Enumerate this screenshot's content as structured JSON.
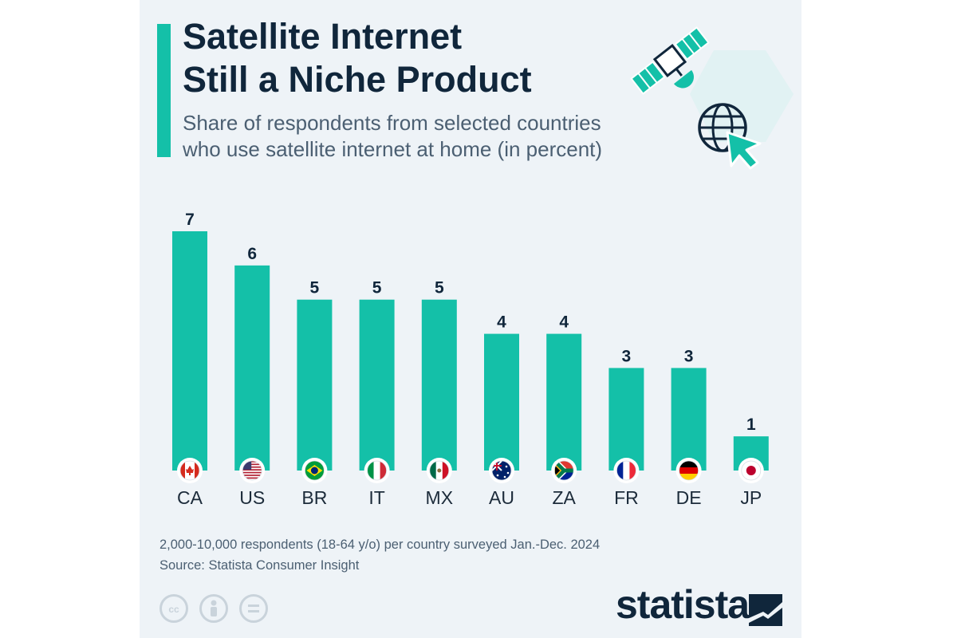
{
  "title_lines": [
    "Satellite Internet",
    "Still a Niche Product"
  ],
  "subtitle_lines": [
    "Share of respondents from selected countries",
    "who use satellite internet at home (in percent)"
  ],
  "footnote": "2,000-10,000 respondents (18-64 y/o) per country surveyed Jan.-Dec. 2024",
  "source": "Source: Statista Consumer Insight",
  "logo_text": "statista",
  "license_icons": [
    "creative-commons-icon",
    "attribution-person-icon",
    "no-derivatives-icon"
  ],
  "illustration_icons": [
    "satellite-icon",
    "globe-icon",
    "cursor-arrow-icon"
  ],
  "colors": {
    "bar": "#14c0a8",
    "title": "#10263b",
    "background": "#eef3f7"
  },
  "chart_data": {
    "type": "bar",
    "categories": [
      "CA",
      "US",
      "BR",
      "IT",
      "MX",
      "AU",
      "ZA",
      "FR",
      "DE",
      "JP"
    ],
    "values": [
      7,
      6,
      5,
      5,
      5,
      4,
      4,
      3,
      3,
      1
    ],
    "ylim": [
      0,
      7
    ],
    "grid": false,
    "legend": "none",
    "category_icons": [
      "canada-flag-icon",
      "usa-flag-icon",
      "brazil-flag-icon",
      "italy-flag-icon",
      "mexico-flag-icon",
      "australia-flag-icon",
      "south-africa-flag-icon",
      "france-flag-icon",
      "germany-flag-icon",
      "japan-flag-icon"
    ]
  }
}
